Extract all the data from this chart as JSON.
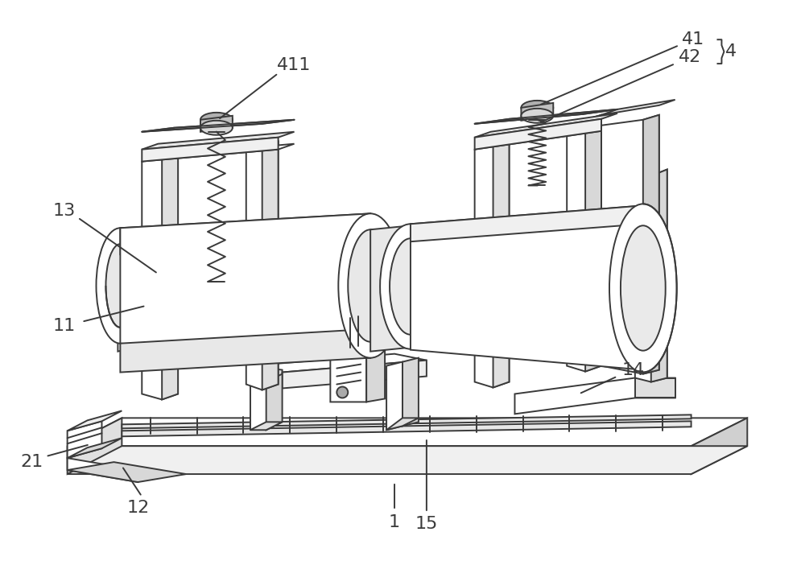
{
  "bg_color": "#ffffff",
  "line_color": "#3a3a3a",
  "line_width": 1.4,
  "label_fontsize": 16,
  "figsize": [
    10.0,
    7.07
  ],
  "dpi": 100
}
